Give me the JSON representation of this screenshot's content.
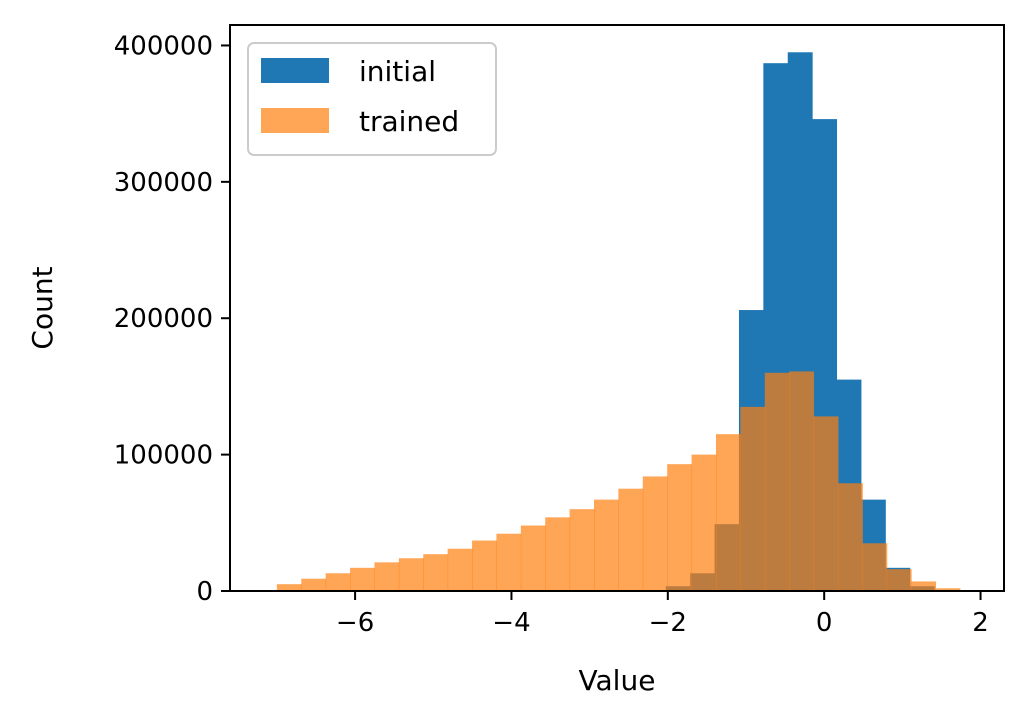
{
  "chart_data": {
    "type": "bar",
    "xlabel": "Value",
    "ylabel": "Count",
    "xlim": [
      -7.6,
      2.3
    ],
    "ylim": [
      0,
      415000
    ],
    "xticks": [
      -6,
      -4,
      -2,
      0,
      2
    ],
    "yticks": [
      0,
      100000,
      200000,
      300000,
      400000
    ],
    "legend_position": "top-left",
    "series": [
      {
        "name": "initial",
        "color": "#1f77b4",
        "opacity": 1.0,
        "bin_edges": [
          -2.026,
          -1.714,
          -1.402,
          -1.09,
          -0.778,
          -0.466,
          -0.154,
          0.158,
          0.47,
          0.782,
          1.094,
          1.406,
          1.718
        ],
        "counts": [
          3500,
          13000,
          49000,
          206000,
          387000,
          395000,
          346000,
          155000,
          67000,
          17000,
          3500,
          800
        ]
      },
      {
        "name": "trained",
        "color": "#ff7f0e",
        "opacity": 0.7,
        "bin_edges": [
          -7.0,
          -6.688,
          -6.376,
          -6.064,
          -5.752,
          -5.44,
          -5.128,
          -4.816,
          -4.504,
          -4.192,
          -3.88,
          -3.568,
          -3.256,
          -2.944,
          -2.632,
          -2.32,
          -2.008,
          -1.696,
          -1.384,
          -1.072,
          -0.76,
          -0.448,
          -0.136,
          0.176,
          0.488,
          0.8,
          1.112,
          1.424,
          1.736
        ],
        "counts": [
          5000,
          9000,
          13000,
          17000,
          21000,
          24000,
          27000,
          31000,
          37000,
          42000,
          48000,
          54000,
          60000,
          67000,
          75000,
          84000,
          93000,
          100000,
          115000,
          135000,
          160000,
          161000,
          128000,
          79000,
          35000,
          16000,
          7000,
          2000
        ]
      }
    ]
  }
}
